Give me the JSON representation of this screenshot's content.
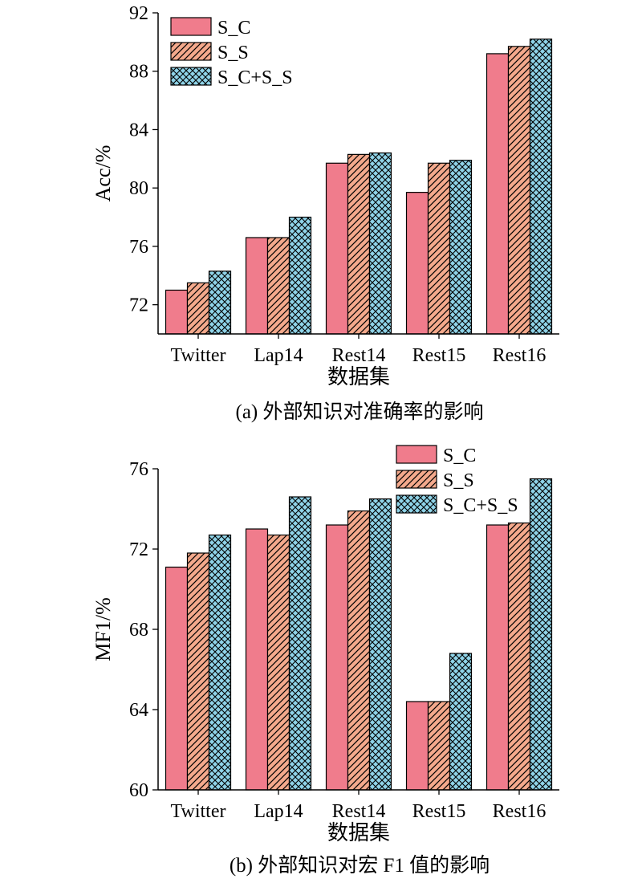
{
  "colors": {
    "s_c": "#f07c8c",
    "s_s": "#f4a98c",
    "s_c_s_s": "#8fd3e8",
    "stroke": "#000000"
  },
  "chart_data": [
    {
      "type": "bar",
      "caption": "(a) 外部知识对准确率的影响",
      "xlabel": "数据集",
      "ylabel": "Acc/%",
      "categories": [
        "Twitter",
        "Lap14",
        "Rest14",
        "Rest15",
        "Rest16"
      ],
      "ylim": [
        70,
        92
      ],
      "yticks": [
        72,
        76,
        80,
        84,
        88,
        92
      ],
      "legend_position": "top-left",
      "series": [
        {
          "name": "S_C",
          "values": [
            73.0,
            76.6,
            81.7,
            79.7,
            89.2
          ]
        },
        {
          "name": "S_S",
          "values": [
            73.5,
            76.6,
            82.3,
            81.7,
            89.7
          ]
        },
        {
          "name": "S_C+S_S",
          "values": [
            74.3,
            78.0,
            82.4,
            81.9,
            90.2
          ]
        }
      ]
    },
    {
      "type": "bar",
      "caption": "(b) 外部知识对宏 F1 值的影响",
      "xlabel": "数据集",
      "ylabel": "MF1/%",
      "categories": [
        "Twitter",
        "Lap14",
        "Rest14",
        "Rest15",
        "Rest16"
      ],
      "ylim": [
        60,
        76
      ],
      "yticks": [
        60,
        64,
        68,
        72,
        76
      ],
      "legend_position": "top-right",
      "series": [
        {
          "name": "S_C",
          "values": [
            71.1,
            73.0,
            73.2,
            64.4,
            73.2
          ]
        },
        {
          "name": "S_S",
          "values": [
            71.8,
            72.7,
            73.9,
            64.4,
            73.3
          ]
        },
        {
          "name": "S_C+S_S",
          "values": [
            72.7,
            74.6,
            74.5,
            66.8,
            75.5
          ]
        }
      ]
    }
  ]
}
